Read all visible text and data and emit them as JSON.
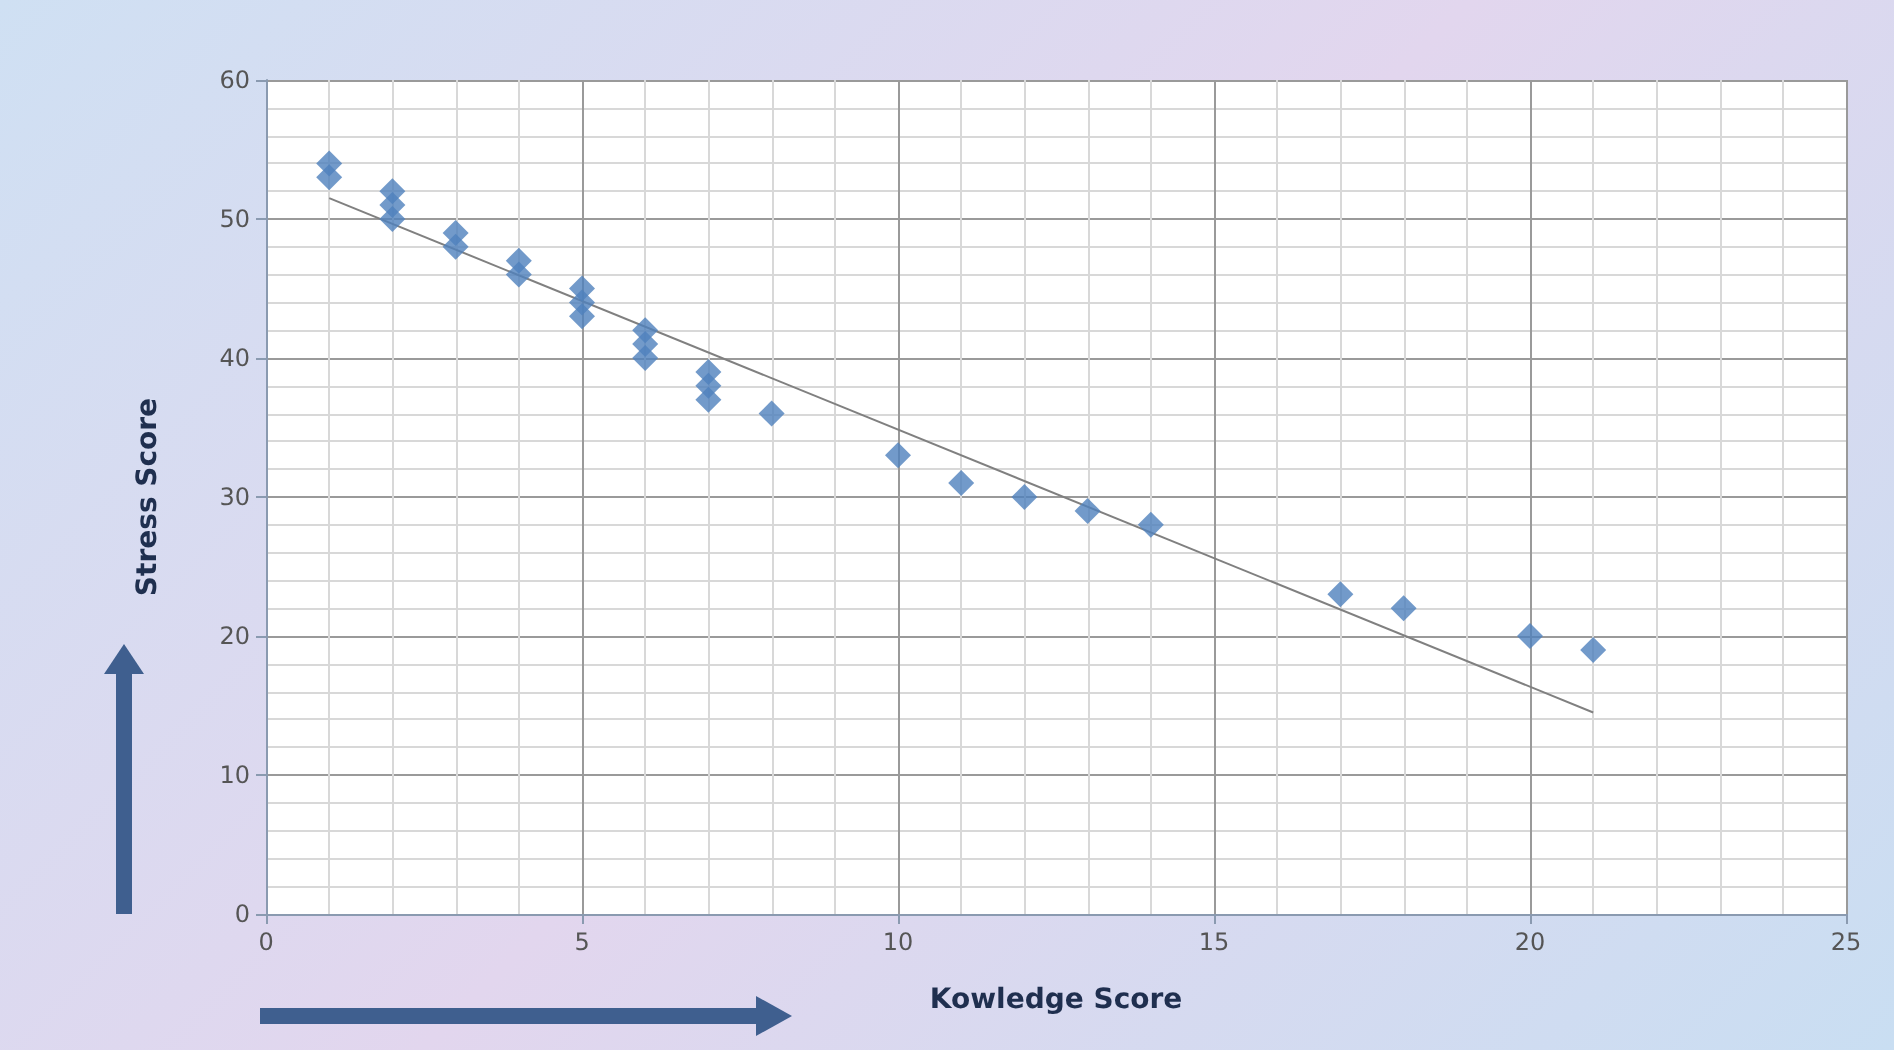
{
  "chart_data": {
    "type": "scatter",
    "xlabel": "Kowledge Score",
    "ylabel": "Stress Score",
    "xlim": [
      0,
      25
    ],
    "xticks": [
      0,
      5,
      10,
      15,
      20,
      25
    ],
    "ylim": [
      0,
      60
    ],
    "yticks": [
      0,
      10,
      20,
      30,
      40,
      50,
      60
    ],
    "grid": true,
    "series": [
      {
        "color": "#4f81bd",
        "marker": "diamond",
        "x": [
          1,
          1,
          2,
          2,
          2,
          3,
          3,
          4,
          4,
          5,
          5,
          5,
          6,
          6,
          6,
          7,
          7,
          7,
          8,
          10,
          11,
          12,
          13,
          14,
          17,
          18,
          20,
          21
        ],
        "values": [
          54,
          53,
          52,
          51,
          50,
          49,
          48,
          47,
          46,
          45,
          44,
          43,
          42,
          41,
          40,
          39,
          38,
          37,
          36,
          33,
          31,
          30,
          29,
          28,
          23,
          22,
          20,
          19
        ]
      },
      {
        "type": "line",
        "marker": "none",
        "color": "#808080",
        "x": [
          1,
          21
        ],
        "values": [
          51.5,
          14.5
        ]
      }
    ]
  }
}
